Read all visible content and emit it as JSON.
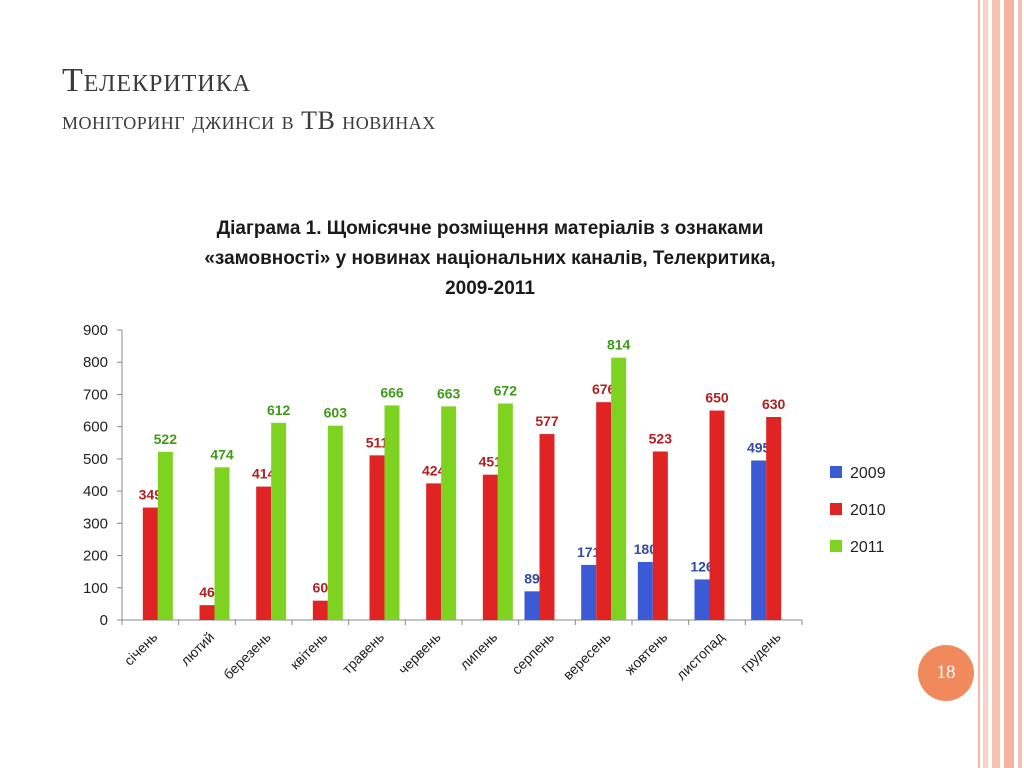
{
  "slide": {
    "title": "Телекритика",
    "subtitle": "моніторинг джинси в ТВ новинах",
    "page_number": "18",
    "colors": {
      "accent": "#f08a5d",
      "stripe": "#f4b8a5"
    }
  },
  "chart_data": {
    "type": "bar",
    "title_lines": [
      "Діаграма 1. Щомісячне розміщення матеріалів з ознаками",
      "«замовності» у новинах національних каналів, Телекритика,",
      "2009-2011"
    ],
    "categories": [
      "січень",
      "лютий",
      "березень",
      "квітень",
      "травень",
      "червень",
      "липень",
      "серпень",
      "вересень",
      "жовтень",
      "листопад",
      "грудень"
    ],
    "series": [
      {
        "name": "2009",
        "color": "#3b5bd6",
        "label_color": "#2f4aa8",
        "values": [
          null,
          null,
          null,
          null,
          null,
          null,
          null,
          89,
          171,
          180,
          126,
          495
        ]
      },
      {
        "name": "2010",
        "color": "#e02424",
        "label_color": "#b02020",
        "values": [
          349,
          46,
          414,
          60,
          511,
          424,
          451,
          577,
          676,
          523,
          650,
          630
        ]
      },
      {
        "name": "2011",
        "color": "#7ed321",
        "label_color": "#3f9a1a",
        "values": [
          522,
          474,
          612,
          603,
          666,
          663,
          672,
          null,
          814,
          null,
          null,
          null
        ]
      }
    ],
    "yticks": [
      0,
      100,
      200,
      300,
      400,
      500,
      600,
      700,
      800,
      900
    ],
    "ylim": [
      0,
      900
    ],
    "grid": false,
    "legend_position": "right"
  }
}
